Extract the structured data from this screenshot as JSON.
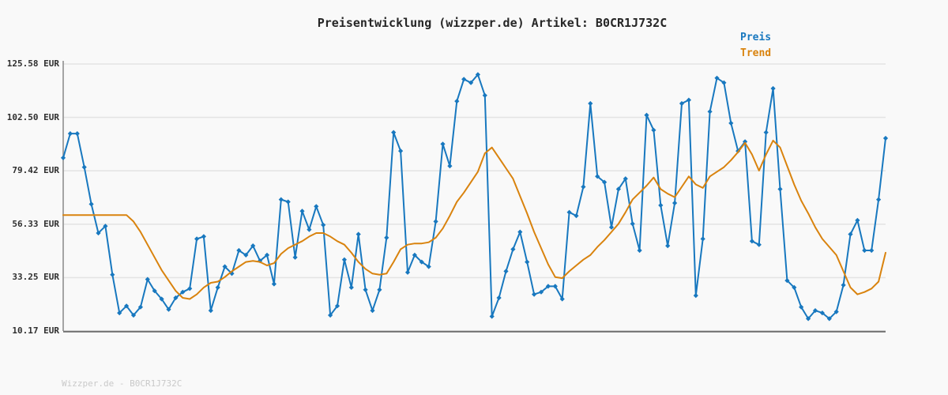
{
  "title": "Preisentwicklung (wizzper.de) Artikel: B0CR1J732C",
  "footer": {
    "text": "Wizzper.de - B0CR1J732C"
  },
  "legend": {
    "position": "top-right",
    "items": [
      {
        "label": "Preis",
        "color": "#1878bf"
      },
      {
        "label": "Trend",
        "color": "#d9830e"
      }
    ]
  },
  "colors": {
    "background": "#f9f9f9",
    "grid": "#e4e4e4",
    "axis_left": "#9a9a9a",
    "axis_bottom": "#6e6e6e",
    "title": "#262626",
    "tick_text": "#2e2e2e",
    "footer_text": "#c9c9c9",
    "preis": "#1878bf",
    "trend": "#d9830e"
  },
  "chart_data": {
    "type": "line",
    "title": "Preisentwicklung (wizzper.de) Artikel: B0CR1J732C",
    "xlabel": "",
    "ylabel": "EUR",
    "grid": true,
    "x_axis_labels": "none",
    "legend_position": "top-right",
    "ylim": [
      10.17,
      125.58
    ],
    "yticks": [
      {
        "value": 125.58,
        "label": "125.58 EUR"
      },
      {
        "value": 102.5,
        "label": "102.50 EUR"
      },
      {
        "value": 79.42,
        "label": "79.42 EUR"
      },
      {
        "value": 56.33,
        "label": "56.33 EUR"
      },
      {
        "value": 33.25,
        "label": "33.25 EUR"
      },
      {
        "value": 10.17,
        "label": "10.17 EUR"
      }
    ],
    "series": [
      {
        "name": "Preis",
        "color": "#1878bf",
        "marker": "diamond",
        "values": [
          85,
          95.5,
          95.5,
          81,
          65,
          52.5,
          55.5,
          34.5,
          18,
          21,
          17,
          20.5,
          32.5,
          27.5,
          24,
          19.5,
          24.5,
          27,
          28.5,
          50,
          51,
          19,
          29,
          38,
          35,
          45,
          43,
          47,
          40.5,
          43,
          30.5,
          67,
          66,
          42,
          62,
          54,
          64,
          56,
          17,
          21,
          41,
          29,
          52,
          28,
          19,
          28,
          50.5,
          96,
          88,
          35.5,
          43,
          40,
          38,
          57.5,
          91,
          81.5,
          109.5,
          119,
          117.5,
          121,
          112,
          16.5,
          24.5,
          36,
          45.5,
          53,
          40,
          26,
          27,
          29.5,
          29.5,
          24,
          61.5,
          60,
          72.5,
          108.5,
          77,
          74.5,
          55,
          71.5,
          76,
          56.5,
          45,
          103.5,
          97,
          64.5,
          47,
          65.5,
          108.5,
          110,
          25.5,
          50,
          105,
          119.5,
          117.5,
          100,
          88,
          92,
          49,
          47.5,
          96,
          115,
          71.5,
          32,
          29,
          20.5,
          15.5,
          19,
          18,
          15.5,
          18.5,
          30,
          52,
          58,
          45,
          45,
          67,
          93.5
        ]
      },
      {
        "name": "Trend",
        "color": "#d9830e",
        "marker": "none",
        "values": [
          60.3,
          60.3,
          60.3,
          60.3,
          60.3,
          60.3,
          60.3,
          60.3,
          60.3,
          60.3,
          57.5,
          53,
          47.5,
          42,
          36.5,
          32,
          27.5,
          24.5,
          24,
          26,
          29,
          31,
          31.5,
          33.5,
          36,
          38,
          40,
          40.5,
          40,
          38.5,
          39.5,
          43.5,
          46,
          47.5,
          49,
          51,
          52.5,
          52.5,
          51,
          49,
          47.5,
          44,
          40,
          37,
          35,
          34.5,
          35,
          40,
          45.5,
          47.5,
          48,
          48,
          48.5,
          50.5,
          54.5,
          60,
          66,
          70,
          74.5,
          79,
          87,
          89.5,
          85,
          80.5,
          76,
          68.5,
          61,
          53,
          46,
          39,
          33.5,
          33,
          36,
          38.5,
          41,
          43,
          46.5,
          49.5,
          53,
          56.5,
          61.5,
          67,
          70,
          73,
          76.5,
          71.5,
          69.5,
          68,
          72.5,
          77,
          73.5,
          72,
          77,
          79,
          81,
          84,
          87.5,
          91.5,
          86.5,
          79.5,
          86.5,
          92.5,
          89.5,
          81.5,
          73.5,
          66.5,
          61,
          55,
          50,
          46.5,
          43,
          36,
          29,
          26,
          27,
          28.5,
          31.5,
          44
        ]
      }
    ]
  }
}
